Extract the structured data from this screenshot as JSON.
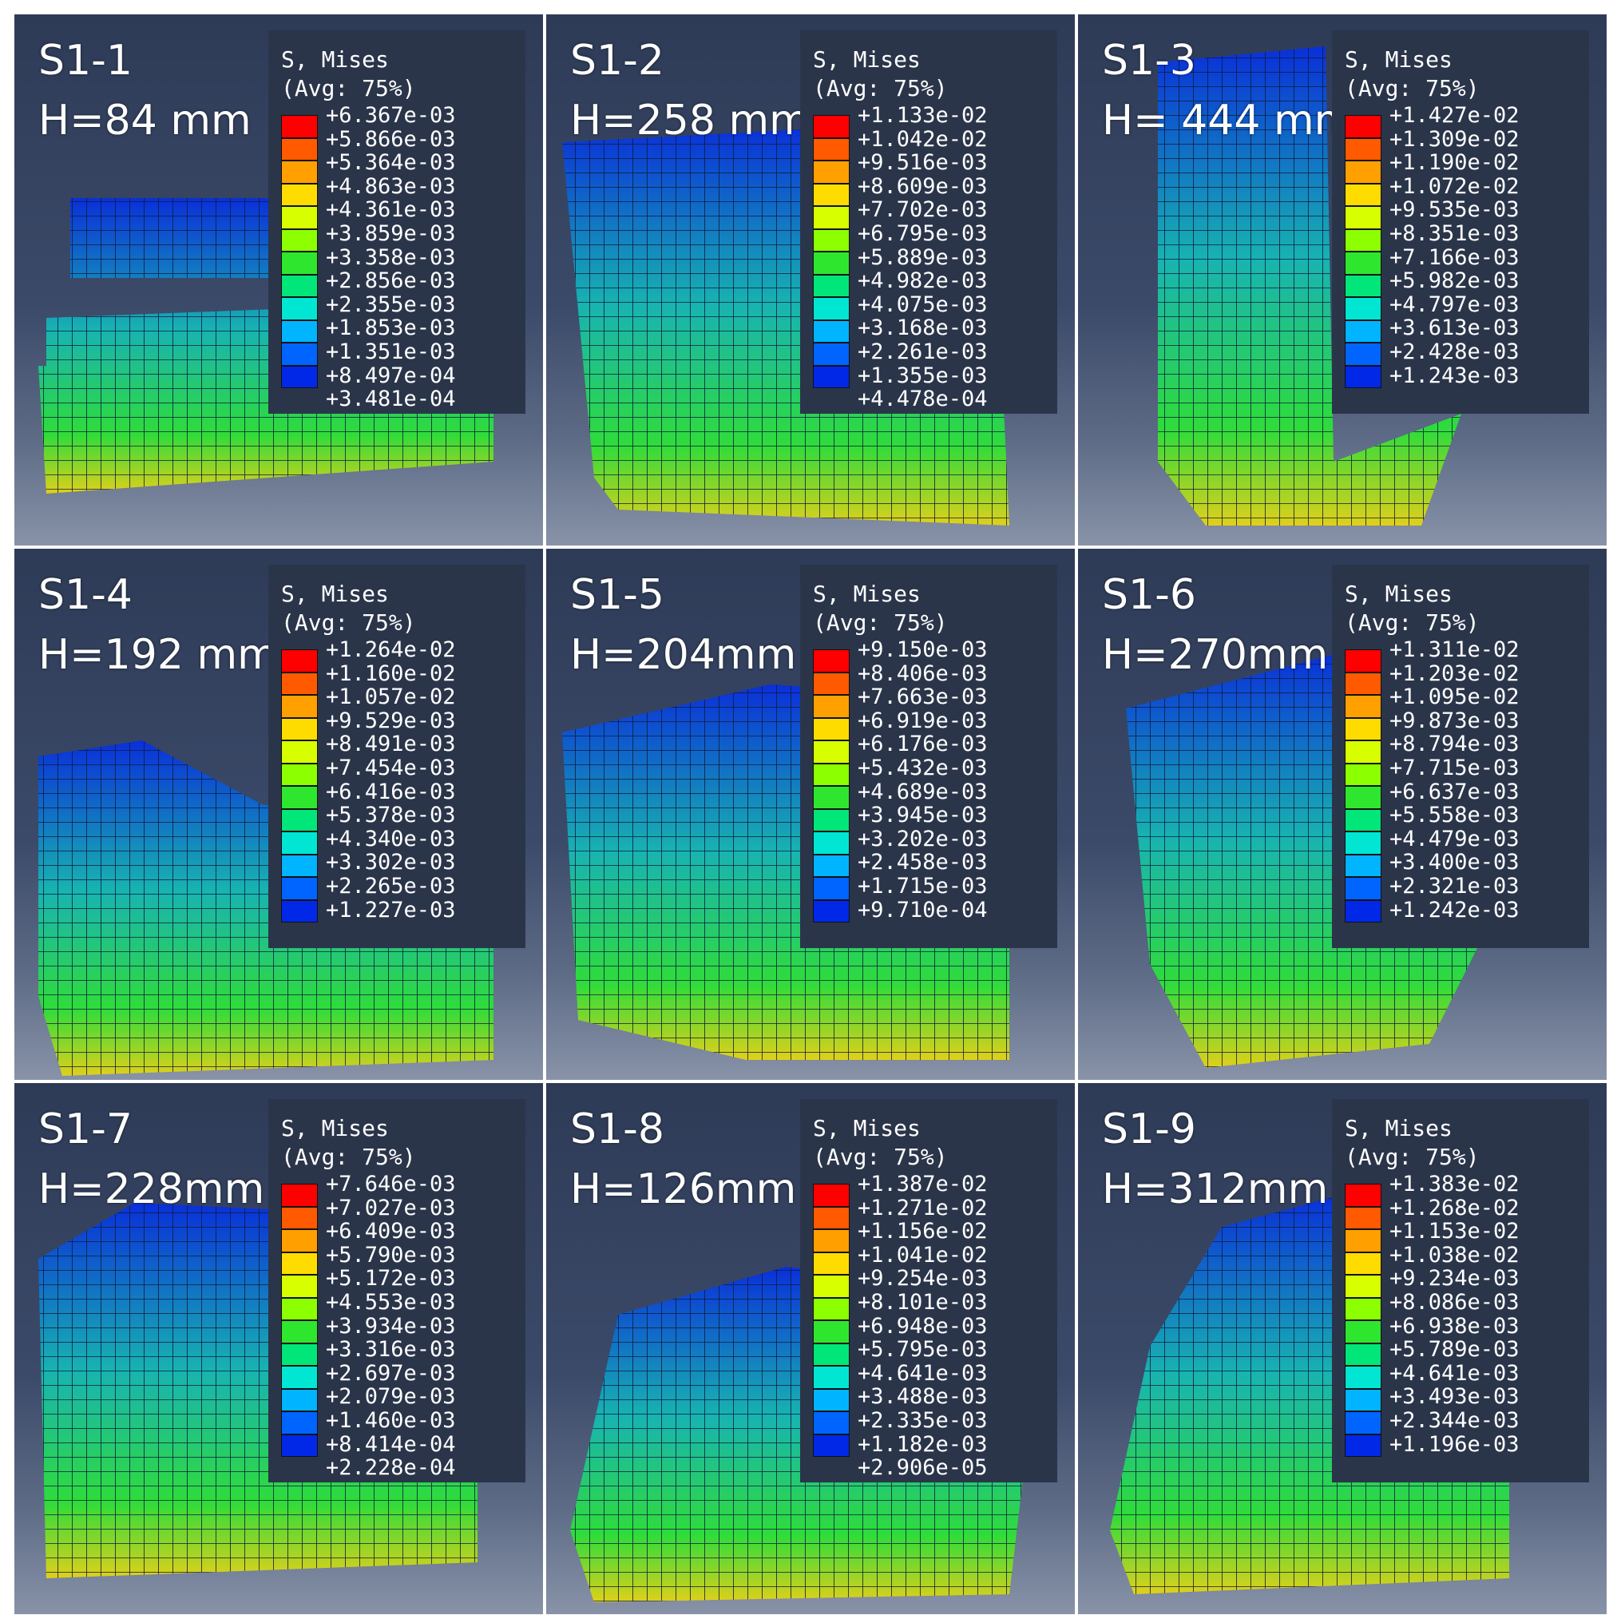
{
  "legend_title": "S, Mises",
  "legend_avg": "(Avg: 75%)",
  "panels": [
    {
      "id": "S1-1",
      "height": "H=84 mm",
      "values": [
        "+6.367e-03",
        "+5.866e-03",
        "+5.364e-03",
        "+4.863e-03",
        "+4.361e-03",
        "+3.859e-03",
        "+3.358e-03",
        "+2.856e-03",
        "+2.355e-03",
        "+1.853e-03",
        "+1.351e-03",
        "+8.497e-04",
        "+3.481e-04"
      ]
    },
    {
      "id": "S1-2",
      "height": "H=258 mm",
      "values": [
        "+1.133e-02",
        "+1.042e-02",
        "+9.516e-03",
        "+8.609e-03",
        "+7.702e-03",
        "+6.795e-03",
        "+5.889e-03",
        "+4.982e-03",
        "+4.075e-03",
        "+3.168e-03",
        "+2.261e-03",
        "+1.355e-03",
        "+4.478e-04"
      ]
    },
    {
      "id": "S1-3",
      "height": "H= 444 mm",
      "values": [
        "+1.427e-02",
        "+1.309e-02",
        "+1.190e-02",
        "+1.072e-02",
        "+9.535e-03",
        "+8.351e-03",
        "+7.166e-03",
        "+5.982e-03",
        "+4.797e-03",
        "+3.613e-03",
        "+2.428e-03",
        "+1.243e-03",
        ""
      ]
    },
    {
      "id": "S1-4",
      "height": "H=192 mm",
      "values": [
        "+1.264e-02",
        "+1.160e-02",
        "+1.057e-02",
        "+9.529e-03",
        "+8.491e-03",
        "+7.454e-03",
        "+6.416e-03",
        "+5.378e-03",
        "+4.340e-03",
        "+3.302e-03",
        "+2.265e-03",
        "+1.227e-03",
        ""
      ]
    },
    {
      "id": "S1-5",
      "height": "H=204mm",
      "values": [
        "+9.150e-03",
        "+8.406e-03",
        "+7.663e-03",
        "+6.919e-03",
        "+6.176e-03",
        "+5.432e-03",
        "+4.689e-03",
        "+3.945e-03",
        "+3.202e-03",
        "+2.458e-03",
        "+1.715e-03",
        "+9.710e-04",
        ""
      ]
    },
    {
      "id": "S1-6",
      "height": "H=270mm",
      "values": [
        "+1.311e-02",
        "+1.203e-02",
        "+1.095e-02",
        "+9.873e-03",
        "+8.794e-03",
        "+7.715e-03",
        "+6.637e-03",
        "+5.558e-03",
        "+4.479e-03",
        "+3.400e-03",
        "+2.321e-03",
        "+1.242e-03",
        ""
      ]
    },
    {
      "id": "S1-7",
      "height": "H=228mm",
      "values": [
        "+7.646e-03",
        "+7.027e-03",
        "+6.409e-03",
        "+5.790e-03",
        "+5.172e-03",
        "+4.553e-03",
        "+3.934e-03",
        "+3.316e-03",
        "+2.697e-03",
        "+2.079e-03",
        "+1.460e-03",
        "+8.414e-04",
        "+2.228e-04"
      ]
    },
    {
      "id": "S1-8",
      "height": "H=126mm",
      "values": [
        "+1.387e-02",
        "+1.271e-02",
        "+1.156e-02",
        "+1.041e-02",
        "+9.254e-03",
        "+8.101e-03",
        "+6.948e-03",
        "+5.795e-03",
        "+4.641e-03",
        "+3.488e-03",
        "+2.335e-03",
        "+1.182e-03",
        "+2.906e-05"
      ]
    },
    {
      "id": "S1-9",
      "height": "H=312mm",
      "values": [
        "+1.383e-02",
        "+1.268e-02",
        "+1.153e-02",
        "+1.038e-02",
        "+9.234e-03",
        "+8.086e-03",
        "+6.938e-03",
        "+5.789e-03",
        "+4.641e-03",
        "+3.493e-03",
        "+2.344e-03",
        "+1.196e-03",
        ""
      ]
    }
  ],
  "contour_colors": [
    "#ff0000",
    "#ff5a00",
    "#ffa000",
    "#ffdc00",
    "#d8ff00",
    "#8cff00",
    "#2fe62f",
    "#00e678",
    "#00e6d2",
    "#00b4ff",
    "#0064ff",
    "#0028e6",
    "#0000ff"
  ],
  "mesh_colors": {
    "low": "#0a2fd9",
    "mid": "#18b4b0",
    "high": "#2fdc3a",
    "peak": "#e0d01a",
    "edge": "#0f1a3a"
  }
}
